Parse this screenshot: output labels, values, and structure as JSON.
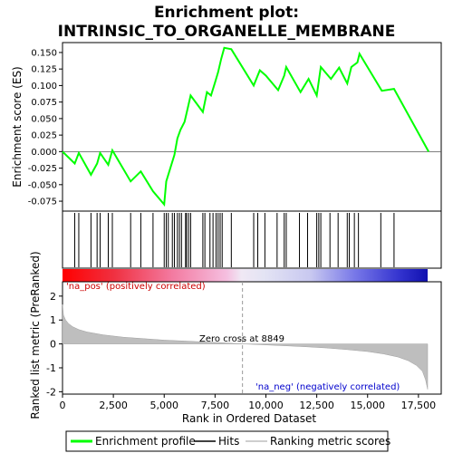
{
  "chart_data": {
    "type": "line",
    "title_line1": "Enrichment plot:",
    "title_line2": "INTRINSIC_TO_ORGANELLE_MEMBRANE",
    "top_panel": {
      "ylabel": "Enrichment score (ES)",
      "ylim": [
        -0.09,
        0.165
      ],
      "yticks": [
        -0.075,
        -0.05,
        -0.025,
        0.0,
        0.025,
        0.05,
        0.075,
        0.1,
        0.125,
        0.15
      ],
      "ytick_labels": [
        "-0.075",
        "-0.050",
        "-0.025",
        "0.000",
        "0.025",
        "0.050",
        "0.075",
        "0.100",
        "0.125",
        "0.150"
      ],
      "line_color": "#00ff00",
      "es_curve": {
        "x": [
          0,
          600,
          800,
          1400,
          1700,
          1850,
          2250,
          2450,
          3350,
          3850,
          4450,
          5000,
          5100,
          5300,
          5500,
          5650,
          5800,
          6000,
          6150,
          6300,
          6900,
          7100,
          7300,
          7500,
          7650,
          7800,
          7950,
          8300,
          9400,
          9700,
          10000,
          10600,
          10900,
          11000,
          11700,
          12100,
          12500,
          12700,
          13200,
          13600,
          14000,
          14200,
          14500,
          14600,
          15700,
          16300,
          18000
        ],
        "y": [
          0.0,
          -0.018,
          -0.002,
          -0.035,
          -0.018,
          -0.002,
          -0.02,
          0.002,
          -0.045,
          -0.03,
          -0.06,
          -0.08,
          -0.045,
          -0.025,
          -0.005,
          0.02,
          0.033,
          0.045,
          0.065,
          0.085,
          0.06,
          0.09,
          0.085,
          0.105,
          0.12,
          0.14,
          0.157,
          0.155,
          0.1,
          0.123,
          0.115,
          0.093,
          0.115,
          0.128,
          0.09,
          0.11,
          0.085,
          0.128,
          0.11,
          0.127,
          0.103,
          0.128,
          0.135,
          0.148,
          0.092,
          0.095,
          0.0
        ]
      }
    },
    "hits": {
      "positions": [
        600,
        800,
        1400,
        1700,
        1850,
        2250,
        2450,
        3350,
        3850,
        4450,
        5000,
        5100,
        5200,
        5400,
        5500,
        5650,
        5750,
        5850,
        6050,
        6100,
        6200,
        6300,
        6900,
        7000,
        7250,
        7400,
        7550,
        7650,
        7750,
        7850,
        8300,
        9400,
        9600,
        9950,
        10550,
        10900,
        11000,
        11650,
        12050,
        12500,
        12600,
        12700,
        13150,
        13550,
        14000,
        14100,
        14350,
        14550,
        15650,
        16300
      ]
    },
    "color_bar": {
      "positive_label": "'na_pos' (positively correlated)",
      "negative_label": "'na_neg' (negatively correlated)"
    },
    "bottom_panel": {
      "ylabel": "Ranked list metric (PreRanked)",
      "xlabel": "Rank in Ordered Dataset",
      "ylim": [
        -2.1,
        2.6
      ],
      "yticks": [
        -2,
        -1,
        0,
        1,
        2
      ],
      "ytick_labels": [
        "-2",
        "-1",
        "0",
        "1",
        "2"
      ],
      "xlim": [
        0,
        18000
      ],
      "xticks": [
        0,
        2500,
        5000,
        7500,
        10000,
        12500,
        15000,
        17500
      ],
      "xtick_labels": [
        "0",
        "2,500",
        "5,000",
        "7,500",
        "10,000",
        "12,500",
        "15,000",
        "17,500"
      ],
      "zero_cross_label": "Zero cross at 8849",
      "zero_cross": 8849,
      "metric_curve": {
        "x": [
          0,
          50,
          150,
          300,
          500,
          800,
          1200,
          2000,
          3000,
          4000,
          5000,
          6000,
          7000,
          8000,
          8849,
          10000,
          11000,
          12000,
          13000,
          14000,
          15000,
          15800,
          16500,
          17000,
          17400,
          17700,
          17850,
          17950
        ],
        "y": [
          1.65,
          1.2,
          1.0,
          0.85,
          0.72,
          0.6,
          0.5,
          0.38,
          0.28,
          0.22,
          0.16,
          0.12,
          0.08,
          0.04,
          0.0,
          -0.04,
          -0.08,
          -0.12,
          -0.17,
          -0.24,
          -0.32,
          -0.42,
          -0.55,
          -0.7,
          -0.9,
          -1.15,
          -1.5,
          -1.9
        ]
      }
    },
    "legend": {
      "items": [
        {
          "label": "Enrichment profile",
          "color": "#00ff00"
        },
        {
          "label": "Hits",
          "color": "#000000"
        },
        {
          "label": "Ranking metric scores",
          "color": "#bebebe"
        }
      ]
    }
  }
}
